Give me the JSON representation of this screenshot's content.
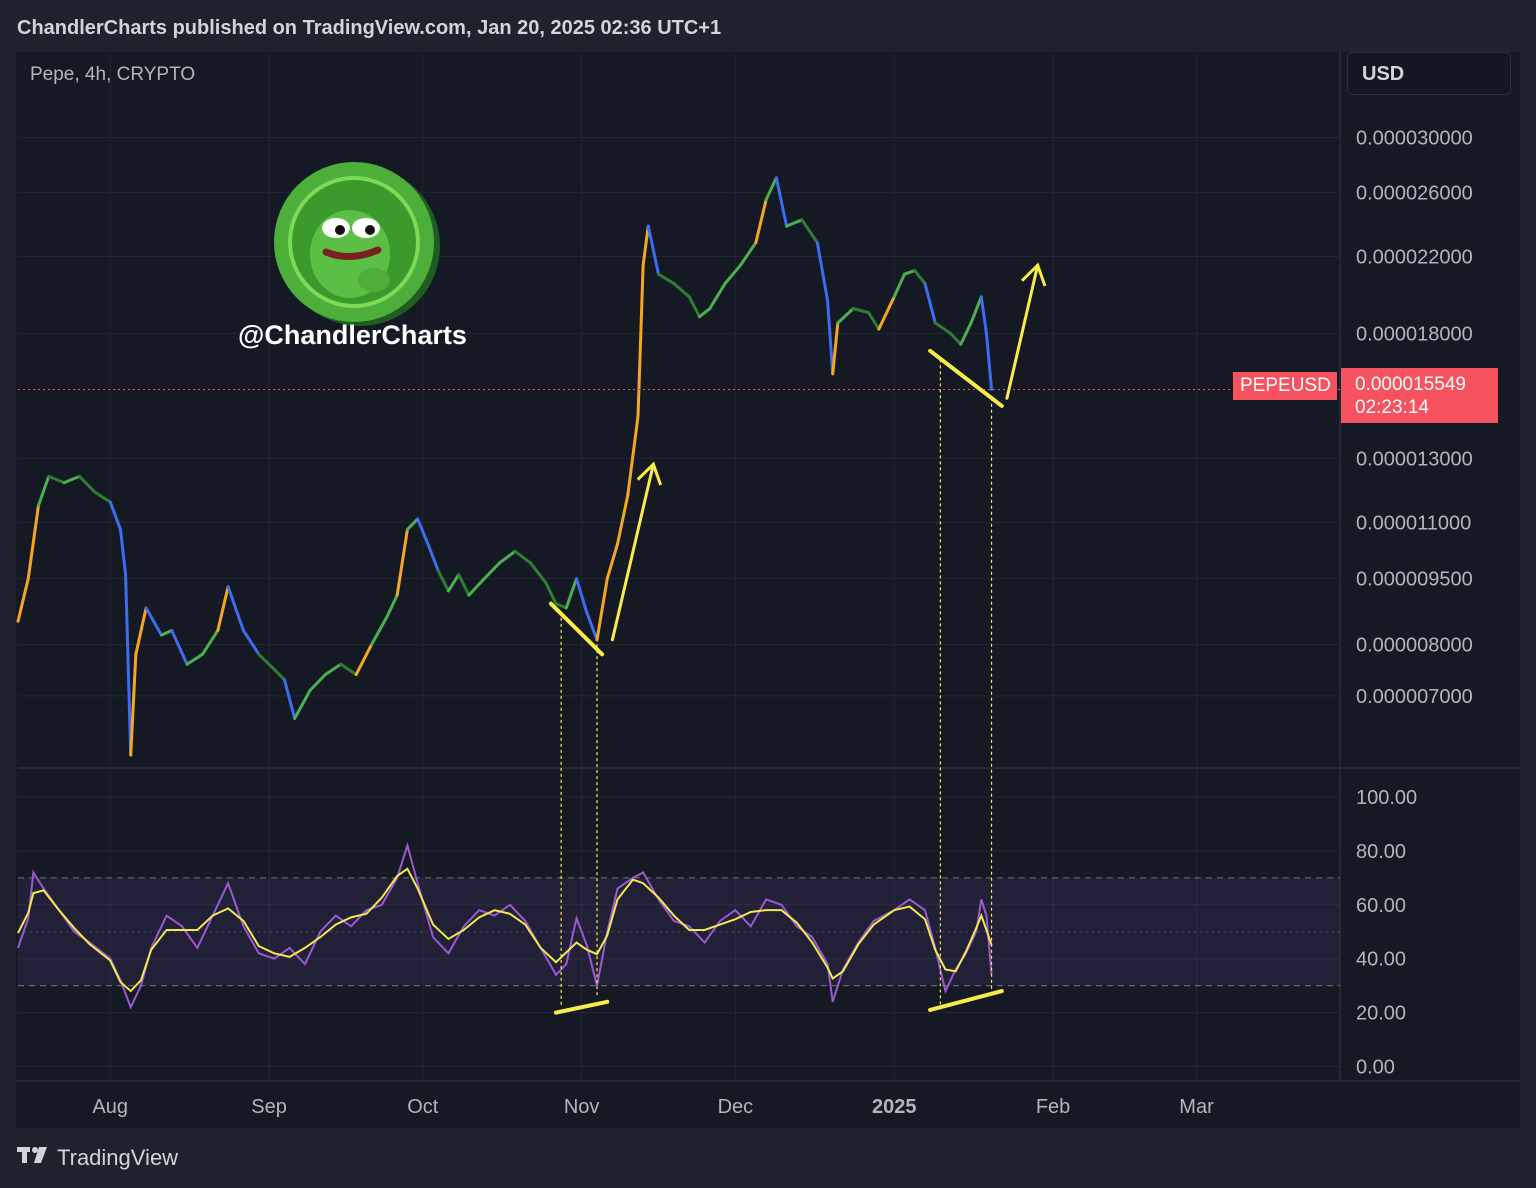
{
  "header": {
    "publisher": "ChandlerCharts published on TradingView.com, Jan 20, 2025 02:36 UTC+1"
  },
  "toolbar": {
    "currency_button": "USD"
  },
  "legend": {
    "symbol": "Pepe, 4h, CRYPTO"
  },
  "watermark": {
    "handle": "@ChandlerCharts",
    "logo_icon": "pepe-coin-logo-icon"
  },
  "last_price": {
    "symbol": "PEPEUSD",
    "price": "0.000015549",
    "countdown": "02:23:14",
    "color": "#f7525f"
  },
  "footer": {
    "brand": "TradingView",
    "logo_icon": "tradingview-logo-icon"
  },
  "colors": {
    "background": "#151924",
    "rsi_line": "#9b59d0",
    "rsi_ma": "#f2e94e",
    "annotation": "#f8ec4a"
  },
  "chart_data": [
    {
      "type": "line",
      "name_hint": "price",
      "scale": "log",
      "y_ticks": [
        "0.000030000",
        "0.000026000",
        "0.000022000",
        "0.000018000",
        "0.000013000",
        "0.000011000",
        "0.000009500",
        "0.000008000",
        "0.000007000"
      ],
      "y_tick_values": [
        3e-05,
        2.6e-05,
        2.2e-05,
        1.8e-05,
        1.3e-05,
        1.1e-05,
        9.5e-06,
        8e-06,
        7e-06
      ],
      "x_ticks": [
        "Aug",
        "Sep",
        "Oct",
        "Nov",
        "Dec",
        "2025",
        "Feb",
        "Mar"
      ],
      "x_tick_dates": [
        "2024-08-01",
        "2024-09-01",
        "2024-10-01",
        "2024-11-01",
        "2024-12-01",
        "2025-01-01",
        "2025-02-01",
        "2025-03-01"
      ],
      "x_range": [
        "2024-07-14",
        "2025-03-29"
      ],
      "y_range": [
        5.8e-06,
        3.35e-05
      ],
      "last_value": 1.5549e-05,
      "points": [
        [
          "2024-07-14",
          8.5e-06
        ],
        [
          "2024-07-16",
          9.5e-06
        ],
        [
          "2024-07-18",
          1.15e-05
        ],
        [
          "2024-07-20",
          1.24e-05
        ],
        [
          "2024-07-23",
          1.22e-05
        ],
        [
          "2024-07-26",
          1.24e-05
        ],
        [
          "2024-07-29",
          1.19e-05
        ],
        [
          "2024-08-01",
          1.16e-05
        ],
        [
          "2024-08-03",
          1.08e-05
        ],
        [
          "2024-08-04",
          9.6e-06
        ],
        [
          "2024-08-05",
          6e-06
        ],
        [
          "2024-08-06",
          7.8e-06
        ],
        [
          "2024-08-08",
          8.8e-06
        ],
        [
          "2024-08-11",
          8.2e-06
        ],
        [
          "2024-08-13",
          8.3e-06
        ],
        [
          "2024-08-16",
          7.6e-06
        ],
        [
          "2024-08-19",
          7.8e-06
        ],
        [
          "2024-08-22",
          8.3e-06
        ],
        [
          "2024-08-24",
          9.3e-06
        ],
        [
          "2024-08-27",
          8.3e-06
        ],
        [
          "2024-08-30",
          7.8e-06
        ],
        [
          "2024-09-02",
          7.5e-06
        ],
        [
          "2024-09-04",
          7.3e-06
        ],
        [
          "2024-09-06",
          6.6e-06
        ],
        [
          "2024-09-09",
          7.1e-06
        ],
        [
          "2024-09-12",
          7.4e-06
        ],
        [
          "2024-09-15",
          7.6e-06
        ],
        [
          "2024-09-18",
          7.4e-06
        ],
        [
          "2024-09-21",
          8e-06
        ],
        [
          "2024-09-24",
          8.6e-06
        ],
        [
          "2024-09-26",
          9.1e-06
        ],
        [
          "2024-09-28",
          1.08e-05
        ],
        [
          "2024-09-30",
          1.11e-05
        ],
        [
          "2024-10-02",
          1.04e-05
        ],
        [
          "2024-10-04",
          9.7e-06
        ],
        [
          "2024-10-06",
          9.2e-06
        ],
        [
          "2024-10-08",
          9.6e-06
        ],
        [
          "2024-10-10",
          9.1e-06
        ],
        [
          "2024-10-13",
          9.5e-06
        ],
        [
          "2024-10-16",
          9.9e-06
        ],
        [
          "2024-10-19",
          1.02e-05
        ],
        [
          "2024-10-22",
          9.9e-06
        ],
        [
          "2024-10-25",
          9.4e-06
        ],
        [
          "2024-10-27",
          8.9e-06
        ],
        [
          "2024-10-29",
          8.8e-06
        ],
        [
          "2024-10-31",
          9.5e-06
        ],
        [
          "2024-11-02",
          8.7e-06
        ],
        [
          "2024-11-04",
          8.1e-06
        ],
        [
          "2024-11-06",
          9.5e-06
        ],
        [
          "2024-11-08",
          1.04e-05
        ],
        [
          "2024-11-10",
          1.18e-05
        ],
        [
          "2024-11-12",
          1.45e-05
        ],
        [
          "2024-11-13",
          2.15e-05
        ],
        [
          "2024-11-14",
          2.38e-05
        ],
        [
          "2024-11-16",
          2.1e-05
        ],
        [
          "2024-11-19",
          2.05e-05
        ],
        [
          "2024-11-22",
          1.98e-05
        ],
        [
          "2024-11-24",
          1.88e-05
        ],
        [
          "2024-11-26",
          1.92e-05
        ],
        [
          "2024-11-29",
          2.05e-05
        ],
        [
          "2024-12-02",
          2.15e-05
        ],
        [
          "2024-12-05",
          2.28e-05
        ],
        [
          "2024-12-07",
          2.55e-05
        ],
        [
          "2024-12-09",
          2.7e-05
        ],
        [
          "2024-12-11",
          2.38e-05
        ],
        [
          "2024-12-14",
          2.42e-05
        ],
        [
          "2024-12-17",
          2.28e-05
        ],
        [
          "2024-12-19",
          1.96e-05
        ],
        [
          "2024-12-20",
          1.62e-05
        ],
        [
          "2024-12-21",
          1.85e-05
        ],
        [
          "2024-12-24",
          1.92e-05
        ],
        [
          "2024-12-27",
          1.9e-05
        ],
        [
          "2024-12-29",
          1.82e-05
        ],
        [
          "2025-01-01",
          1.98e-05
        ],
        [
          "2025-01-03",
          2.1e-05
        ],
        [
          "2025-01-05",
          2.12e-05
        ],
        [
          "2025-01-07",
          2.05e-05
        ],
        [
          "2025-01-09",
          1.85e-05
        ],
        [
          "2025-01-12",
          1.8e-05
        ],
        [
          "2025-01-14",
          1.75e-05
        ],
        [
          "2025-01-16",
          1.85e-05
        ],
        [
          "2025-01-18",
          1.98e-05
        ],
        [
          "2025-01-19",
          1.8e-05
        ],
        [
          "2025-01-20",
          1.5549e-05
        ]
      ]
    },
    {
      "type": "line",
      "name_hint": "rsi",
      "y_ticks": [
        "100.00",
        "80.00",
        "60.00",
        "40.00",
        "20.00",
        "0.00"
      ],
      "y_tick_values": [
        100,
        80,
        60,
        40,
        20,
        0
      ],
      "y_range": [
        -5,
        110
      ],
      "bands": [
        30,
        50,
        70
      ],
      "x_range": [
        "2024-07-14",
        "2025-03-29"
      ],
      "rsi": [
        [
          "2024-07-14",
          44
        ],
        [
          "2024-07-16",
          55
        ],
        [
          "2024-07-17",
          72
        ],
        [
          "2024-07-19",
          66
        ],
        [
          "2024-07-22",
          58
        ],
        [
          "2024-07-25",
          50
        ],
        [
          "2024-07-28",
          46
        ],
        [
          "2024-08-01",
          40
        ],
        [
          "2024-08-03",
          32
        ],
        [
          "2024-08-05",
          22
        ],
        [
          "2024-08-07",
          30
        ],
        [
          "2024-08-09",
          44
        ],
        [
          "2024-08-12",
          56
        ],
        [
          "2024-08-15",
          52
        ],
        [
          "2024-08-18",
          44
        ],
        [
          "2024-08-21",
          56
        ],
        [
          "2024-08-24",
          68
        ],
        [
          "2024-08-27",
          52
        ],
        [
          "2024-08-30",
          42
        ],
        [
          "2024-09-02",
          40
        ],
        [
          "2024-09-05",
          44
        ],
        [
          "2024-09-08",
          38
        ],
        [
          "2024-09-11",
          50
        ],
        [
          "2024-09-14",
          56
        ],
        [
          "2024-09-17",
          52
        ],
        [
          "2024-09-20",
          58
        ],
        [
          "2024-09-23",
          60
        ],
        [
          "2024-09-26",
          70
        ],
        [
          "2024-09-28",
          82
        ],
        [
          "2024-09-30",
          68
        ],
        [
          "2024-10-03",
          48
        ],
        [
          "2024-10-06",
          42
        ],
        [
          "2024-10-09",
          52
        ],
        [
          "2024-10-12",
          58
        ],
        [
          "2024-10-15",
          56
        ],
        [
          "2024-10-18",
          60
        ],
        [
          "2024-10-21",
          54
        ],
        [
          "2024-10-24",
          44
        ],
        [
          "2024-10-27",
          34
        ],
        [
          "2024-10-29",
          38
        ],
        [
          "2024-10-31",
          55
        ],
        [
          "2024-11-02",
          45
        ],
        [
          "2024-11-04",
          30
        ],
        [
          "2024-11-06",
          50
        ],
        [
          "2024-11-08",
          66
        ],
        [
          "2024-11-11",
          70
        ],
        [
          "2024-11-13",
          72
        ],
        [
          "2024-11-16",
          62
        ],
        [
          "2024-11-19",
          54
        ],
        [
          "2024-11-22",
          52
        ],
        [
          "2024-11-25",
          46
        ],
        [
          "2024-11-28",
          54
        ],
        [
          "2024-12-01",
          58
        ],
        [
          "2024-12-04",
          52
        ],
        [
          "2024-12-07",
          62
        ],
        [
          "2024-12-10",
          60
        ],
        [
          "2024-12-13",
          52
        ],
        [
          "2024-12-16",
          48
        ],
        [
          "2024-12-19",
          38
        ],
        [
          "2024-12-20",
          24
        ],
        [
          "2024-12-22",
          36
        ],
        [
          "2024-12-25",
          46
        ],
        [
          "2024-12-28",
          54
        ],
        [
          "2025-01-01",
          58
        ],
        [
          "2025-01-04",
          62
        ],
        [
          "2025-01-07",
          58
        ],
        [
          "2025-01-09",
          44
        ],
        [
          "2025-01-11",
          28
        ],
        [
          "2025-01-13",
          36
        ],
        [
          "2025-01-15",
          42
        ],
        [
          "2025-01-17",
          50
        ],
        [
          "2025-01-18",
          62
        ],
        [
          "2025-01-19",
          56
        ],
        [
          "2025-01-20",
          34
        ]
      ]
    }
  ]
}
